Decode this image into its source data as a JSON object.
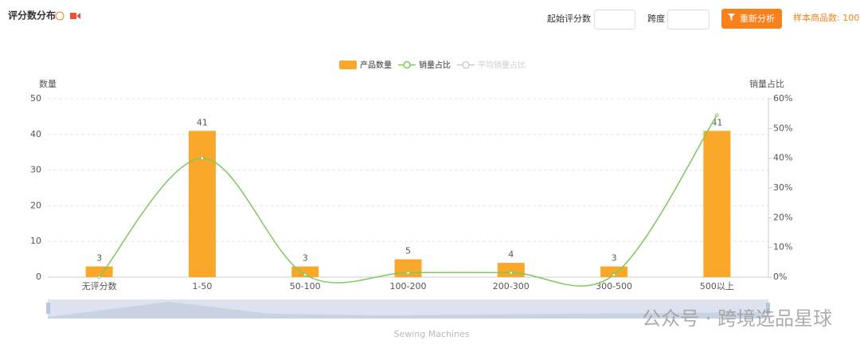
{
  "header": {
    "title": "评分数分布",
    "start_label": "起始评分数",
    "span_label": "跨度",
    "button": "重新分析",
    "sample": "样本商品数: 100"
  },
  "slider": {
    "label": "Sewing Machines"
  },
  "watermark": "公众号 · 跨境选品星球",
  "chart_data": {
    "type": "bar",
    "categories": [
      "无评分数",
      "1-50",
      "50-100",
      "100-200",
      "200-300",
      "300-500",
      "500以上"
    ],
    "series": [
      {
        "name": "产品数量",
        "color": "#f9a82a",
        "values": [
          3,
          41,
          3,
          5,
          4,
          3,
          41
        ]
      },
      {
        "name": "销量占比",
        "color": "#7dc95e",
        "axis": "y2",
        "type": "line",
        "values": [
          0,
          40,
          0.8,
          1.5,
          1.5,
          0.8,
          54.5
        ]
      },
      {
        "name": "平均销量占比",
        "color": "#cccccc",
        "axis": "y2",
        "type": "line",
        "values": [
          null,
          null,
          null,
          null,
          null,
          null,
          null
        ]
      }
    ],
    "ylabel": "数量",
    "y2label": "销量占比",
    "ylim": [
      0,
      50
    ],
    "yticks": [
      0,
      10,
      20,
      30,
      40,
      50
    ],
    "y2lim": [
      0,
      60
    ],
    "y2ticks": [
      {
        "value": 0,
        "label": "0%"
      },
      {
        "value": 10,
        "label": "10%"
      },
      {
        "value": 20,
        "label": "20%"
      },
      {
        "value": 30,
        "label": "30%"
      },
      {
        "value": 40,
        "label": "40%"
      },
      {
        "value": 50,
        "label": "50%"
      },
      {
        "value": 60,
        "label": "60%"
      }
    ],
    "grid": true,
    "legend": "top"
  }
}
